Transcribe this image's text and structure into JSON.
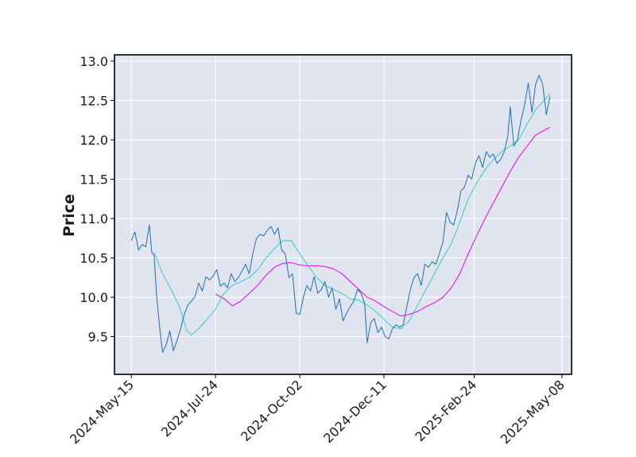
{
  "chart_data": {
    "type": "line",
    "title": "",
    "xlabel": "",
    "ylabel": "Price",
    "ylim": [
      9.02,
      13.08
    ],
    "xlim": [
      "2024-05-01",
      "2025-05-16"
    ],
    "x_ticks": [
      "2024-May-15",
      "2024-Jul-24",
      "2024-Oct-02",
      "2024-Dec-11",
      "2025-Feb-24",
      "2025-May-08"
    ],
    "y_ticks": [
      "9.5",
      "10.0",
      "10.5",
      "11.0",
      "11.5",
      "12.0",
      "12.5",
      "13.0"
    ],
    "grid": true,
    "legend": "none",
    "colors": {
      "plot_background": "#dfe4ef",
      "grid": "#ffffff",
      "price": "#1f6fb5",
      "ma_short": "#40d0c8",
      "ma_long": "#ee11ee"
    },
    "series": [
      {
        "role": "price",
        "points": [
          [
            "2024-05-15",
            10.72
          ],
          [
            "2024-05-18",
            10.83
          ],
          [
            "2024-05-21",
            10.6
          ],
          [
            "2024-05-24",
            10.67
          ],
          [
            "2024-05-27",
            10.64
          ],
          [
            "2024-05-30",
            10.92
          ],
          [
            "2024-06-01",
            10.57
          ],
          [
            "2024-06-03",
            10.53
          ],
          [
            "2024-06-05",
            10.02
          ],
          [
            "2024-06-08",
            9.55
          ],
          [
            "2024-06-10",
            9.3
          ],
          [
            "2024-06-13",
            9.4
          ],
          [
            "2024-06-16",
            9.57
          ],
          [
            "2024-06-19",
            9.32
          ],
          [
            "2024-06-22",
            9.45
          ],
          [
            "2024-06-25",
            9.6
          ],
          [
            "2024-06-28",
            9.78
          ],
          [
            "2024-07-01",
            9.9
          ],
          [
            "2024-07-04",
            9.95
          ],
          [
            "2024-07-07",
            10.01
          ],
          [
            "2024-07-10",
            10.18
          ],
          [
            "2024-07-13",
            10.08
          ],
          [
            "2024-07-16",
            10.26
          ],
          [
            "2024-07-19",
            10.22
          ],
          [
            "2024-07-22",
            10.27
          ],
          [
            "2024-07-25",
            10.35
          ],
          [
            "2024-07-28",
            10.14
          ],
          [
            "2024-07-31",
            10.18
          ],
          [
            "2024-08-03",
            10.12
          ],
          [
            "2024-08-06",
            10.3
          ],
          [
            "2024-08-09",
            10.2
          ],
          [
            "2024-08-12",
            10.25
          ],
          [
            "2024-08-15",
            10.33
          ],
          [
            "2024-08-18",
            10.42
          ],
          [
            "2024-08-21",
            10.3
          ],
          [
            "2024-08-24",
            10.55
          ],
          [
            "2024-08-27",
            10.75
          ],
          [
            "2024-08-30",
            10.8
          ],
          [
            "2024-09-02",
            10.78
          ],
          [
            "2024-09-05",
            10.85
          ],
          [
            "2024-09-08",
            10.9
          ],
          [
            "2024-09-11",
            10.8
          ],
          [
            "2024-09-14",
            10.88
          ],
          [
            "2024-09-17",
            10.6
          ],
          [
            "2024-09-20",
            10.55
          ],
          [
            "2024-09-23",
            10.25
          ],
          [
            "2024-09-26",
            10.3
          ],
          [
            "2024-09-29",
            9.8
          ],
          [
            "2024-10-02",
            9.78
          ],
          [
            "2024-10-05",
            10.0
          ],
          [
            "2024-10-08",
            10.15
          ],
          [
            "2024-10-11",
            10.08
          ],
          [
            "2024-10-14",
            10.26
          ],
          [
            "2024-10-17",
            10.05
          ],
          [
            "2024-10-20",
            10.1
          ],
          [
            "2024-10-23",
            10.2
          ],
          [
            "2024-10-26",
            10.0
          ],
          [
            "2024-10-29",
            10.12
          ],
          [
            "2024-11-01",
            9.85
          ],
          [
            "2024-11-04",
            9.98
          ],
          [
            "2024-11-07",
            9.7
          ],
          [
            "2024-11-10",
            9.8
          ],
          [
            "2024-11-13",
            9.88
          ],
          [
            "2024-11-16",
            9.95
          ],
          [
            "2024-11-19",
            10.1
          ],
          [
            "2024-11-22",
            10.05
          ],
          [
            "2024-11-25",
            9.92
          ],
          [
            "2024-11-27",
            9.42
          ],
          [
            "2024-11-30",
            9.68
          ],
          [
            "2024-12-03",
            9.73
          ],
          [
            "2024-12-06",
            9.55
          ],
          [
            "2024-12-09",
            9.62
          ],
          [
            "2024-12-12",
            9.5
          ],
          [
            "2024-12-15",
            9.47
          ],
          [
            "2024-12-18",
            9.6
          ],
          [
            "2024-12-21",
            9.65
          ],
          [
            "2024-12-24",
            9.62
          ],
          [
            "2024-12-27",
            9.65
          ],
          [
            "2024-12-30",
            9.88
          ],
          [
            "2025-01-02",
            10.1
          ],
          [
            "2025-01-05",
            10.25
          ],
          [
            "2025-01-08",
            10.3
          ],
          [
            "2025-01-11",
            10.15
          ],
          [
            "2025-01-14",
            10.42
          ],
          [
            "2025-01-17",
            10.38
          ],
          [
            "2025-01-20",
            10.45
          ],
          [
            "2025-01-23",
            10.42
          ],
          [
            "2025-01-26",
            10.55
          ],
          [
            "2025-01-29",
            10.7
          ],
          [
            "2025-02-01",
            11.08
          ],
          [
            "2025-02-04",
            10.95
          ],
          [
            "2025-02-07",
            10.92
          ],
          [
            "2025-02-10",
            11.1
          ],
          [
            "2025-02-13",
            11.35
          ],
          [
            "2025-02-16",
            11.4
          ],
          [
            "2025-02-19",
            11.55
          ],
          [
            "2025-02-22",
            11.5
          ],
          [
            "2025-02-25",
            11.7
          ],
          [
            "2025-02-28",
            11.8
          ],
          [
            "2025-03-03",
            11.65
          ],
          [
            "2025-03-06",
            11.85
          ],
          [
            "2025-03-09",
            11.78
          ],
          [
            "2025-03-12",
            11.82
          ],
          [
            "2025-03-15",
            11.7
          ],
          [
            "2025-03-18",
            11.75
          ],
          [
            "2025-03-21",
            11.85
          ],
          [
            "2025-03-24",
            12.05
          ],
          [
            "2025-03-26",
            12.42
          ],
          [
            "2025-03-29",
            11.92
          ],
          [
            "2025-04-01",
            12.0
          ],
          [
            "2025-04-04",
            12.25
          ],
          [
            "2025-04-07",
            12.45
          ],
          [
            "2025-04-10",
            12.72
          ],
          [
            "2025-04-13",
            12.35
          ],
          [
            "2025-04-16",
            12.7
          ],
          [
            "2025-04-19",
            12.82
          ],
          [
            "2025-04-22",
            12.7
          ],
          [
            "2025-04-25",
            12.32
          ],
          [
            "2025-04-28",
            12.55
          ]
        ]
      },
      {
        "role": "ma_short",
        "points": [
          [
            "2024-06-03",
            10.57
          ],
          [
            "2024-06-10",
            10.3
          ],
          [
            "2024-06-17",
            10.1
          ],
          [
            "2024-06-24",
            9.88
          ],
          [
            "2024-06-30",
            9.58
          ],
          [
            "2024-07-04",
            9.52
          ],
          [
            "2024-07-10",
            9.6
          ],
          [
            "2024-07-17",
            9.72
          ],
          [
            "2024-07-24",
            9.85
          ],
          [
            "2024-07-31",
            10.05
          ],
          [
            "2024-08-07",
            10.15
          ],
          [
            "2024-08-14",
            10.2
          ],
          [
            "2024-08-21",
            10.25
          ],
          [
            "2024-08-28",
            10.35
          ],
          [
            "2024-09-04",
            10.5
          ],
          [
            "2024-09-11",
            10.62
          ],
          [
            "2024-09-18",
            10.72
          ],
          [
            "2024-09-25",
            10.72
          ],
          [
            "2024-10-02",
            10.55
          ],
          [
            "2024-10-09",
            10.4
          ],
          [
            "2024-10-16",
            10.25
          ],
          [
            "2024-10-23",
            10.15
          ],
          [
            "2024-10-30",
            10.1
          ],
          [
            "2024-11-06",
            10.05
          ],
          [
            "2024-11-13",
            9.98
          ],
          [
            "2024-11-20",
            9.96
          ],
          [
            "2024-11-27",
            9.9
          ],
          [
            "2024-12-04",
            9.82
          ],
          [
            "2024-12-11",
            9.72
          ],
          [
            "2024-12-18",
            9.62
          ],
          [
            "2024-12-25",
            9.6
          ],
          [
            "2025-01-01",
            9.7
          ],
          [
            "2025-01-08",
            9.9
          ],
          [
            "2025-01-15",
            10.1
          ],
          [
            "2025-01-22",
            10.3
          ],
          [
            "2025-01-29",
            10.5
          ],
          [
            "2025-02-05",
            10.68
          ],
          [
            "2025-02-12",
            10.95
          ],
          [
            "2025-02-19",
            11.25
          ],
          [
            "2025-02-26",
            11.45
          ],
          [
            "2025-03-05",
            11.62
          ],
          [
            "2025-03-12",
            11.75
          ],
          [
            "2025-03-19",
            11.85
          ],
          [
            "2025-03-26",
            11.92
          ],
          [
            "2025-04-02",
            12.0
          ],
          [
            "2025-04-09",
            12.2
          ],
          [
            "2025-04-16",
            12.38
          ],
          [
            "2025-04-23",
            12.5
          ],
          [
            "2025-04-28",
            12.58
          ]
        ]
      },
      {
        "role": "ma_long",
        "points": [
          [
            "2024-07-24",
            10.04
          ],
          [
            "2024-07-31",
            9.98
          ],
          [
            "2024-08-07",
            9.89
          ],
          [
            "2024-08-14",
            9.95
          ],
          [
            "2024-08-21",
            10.05
          ],
          [
            "2024-08-28",
            10.15
          ],
          [
            "2024-09-04",
            10.28
          ],
          [
            "2024-09-11",
            10.38
          ],
          [
            "2024-09-18",
            10.43
          ],
          [
            "2024-09-25",
            10.44
          ],
          [
            "2024-10-02",
            10.41
          ],
          [
            "2024-10-09",
            10.4
          ],
          [
            "2024-10-16",
            10.4
          ],
          [
            "2024-10-23",
            10.39
          ],
          [
            "2024-10-30",
            10.36
          ],
          [
            "2024-11-06",
            10.3
          ],
          [
            "2024-11-13",
            10.2
          ],
          [
            "2024-11-20",
            10.1
          ],
          [
            "2024-11-27",
            10.0
          ],
          [
            "2024-12-04",
            9.95
          ],
          [
            "2024-12-11",
            9.88
          ],
          [
            "2024-12-18",
            9.82
          ],
          [
            "2024-12-25",
            9.76
          ],
          [
            "2025-01-01",
            9.78
          ],
          [
            "2025-01-08",
            9.82
          ],
          [
            "2025-01-15",
            9.88
          ],
          [
            "2025-01-22",
            9.93
          ],
          [
            "2025-01-29",
            10.0
          ],
          [
            "2025-02-05",
            10.12
          ],
          [
            "2025-02-12",
            10.3
          ],
          [
            "2025-02-19",
            10.55
          ],
          [
            "2025-02-26",
            10.78
          ],
          [
            "2025-03-05",
            11.0
          ],
          [
            "2025-03-12",
            11.2
          ],
          [
            "2025-03-19",
            11.4
          ],
          [
            "2025-03-26",
            11.6
          ],
          [
            "2025-04-02",
            11.78
          ],
          [
            "2025-04-09",
            11.92
          ],
          [
            "2025-04-16",
            12.06
          ],
          [
            "2025-04-23",
            12.12
          ],
          [
            "2025-04-28",
            12.16
          ]
        ]
      }
    ]
  }
}
